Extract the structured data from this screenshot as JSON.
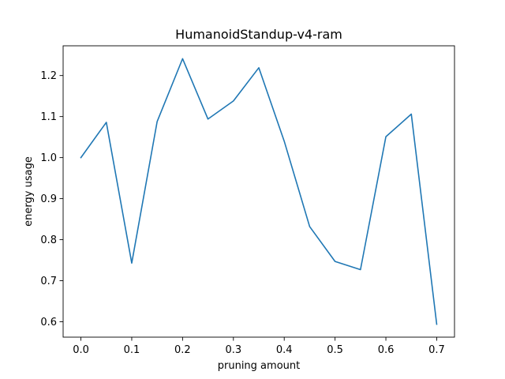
{
  "chart_data": {
    "type": "line",
    "title": "HumanoidStandup-v4-ram",
    "xlabel": "pruning amount",
    "ylabel": "energy usage",
    "x": [
      0.0,
      0.05,
      0.1,
      0.15,
      0.2,
      0.25,
      0.3,
      0.35,
      0.4,
      0.45,
      0.5,
      0.55,
      0.6,
      0.65,
      0.7
    ],
    "series": [
      {
        "name": "energy usage",
        "color": "#1f77b4",
        "values": [
          1.0,
          1.086,
          0.743,
          1.088,
          1.241,
          1.094,
          1.138,
          1.219,
          1.04,
          0.832,
          0.747,
          0.727,
          1.051,
          1.106,
          0.594
        ]
      }
    ],
    "xlim": [
      -0.035,
      0.735
    ],
    "ylim": [
      0.5625,
      1.2725
    ],
    "xticks": [
      0.0,
      0.1,
      0.2,
      0.3,
      0.4,
      0.5,
      0.6,
      0.7
    ],
    "xtick_labels": [
      "0.0",
      "0.1",
      "0.2",
      "0.3",
      "0.4",
      "0.5",
      "0.6",
      "0.7"
    ],
    "yticks": [
      0.6,
      0.7,
      0.8,
      0.9,
      1.0,
      1.1,
      1.2
    ],
    "ytick_labels": [
      "0.6",
      "0.7",
      "0.8",
      "0.9",
      "1.0",
      "1.1",
      "1.2"
    ],
    "grid": false,
    "legend": "none"
  }
}
